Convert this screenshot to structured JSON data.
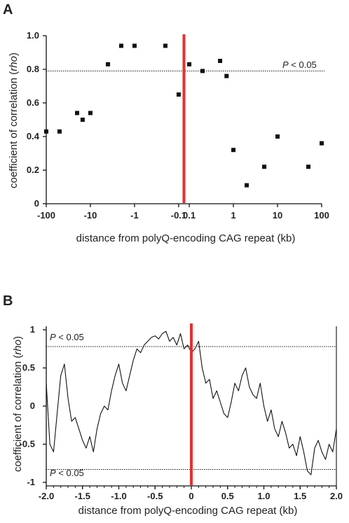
{
  "chart_data": [
    {
      "panel": "A",
      "type": "scatter",
      "xlabel": "distance from polyQ-encoding CAG repeat (kb)",
      "ylabel": "coefficient of correlation (rho)",
      "xscale": "symlog",
      "xticks": [
        -100,
        -10,
        -1,
        -0.1,
        0.1,
        1,
        10,
        100
      ],
      "xtick_labels": [
        "-100",
        "-10",
        "-1",
        "-0.1",
        "0.1",
        "1",
        "10",
        "100"
      ],
      "yticks": [
        0,
        0.2,
        0.4,
        0.6,
        0.8,
        1.0
      ],
      "ytick_labels": [
        "0",
        "0.2",
        "0.4",
        "0.6",
        "0.8",
        "1.0"
      ],
      "ylim": [
        0,
        1.0
      ],
      "threshold": {
        "y": 0.79,
        "label": "P < 0.05"
      },
      "center_marker": "red vertical line at 0",
      "points": [
        {
          "x": -100,
          "y": 0.43
        },
        {
          "x": -50,
          "y": 0.43
        },
        {
          "x": -20,
          "y": 0.54
        },
        {
          "x": -15,
          "y": 0.5
        },
        {
          "x": -10,
          "y": 0.54
        },
        {
          "x": -4,
          "y": 0.83
        },
        {
          "x": -2,
          "y": 0.94
        },
        {
          "x": -1,
          "y": 0.94
        },
        {
          "x": -0.2,
          "y": 0.94
        },
        {
          "x": -0.1,
          "y": 0.65
        },
        {
          "x": 0.1,
          "y": 0.83
        },
        {
          "x": 0.2,
          "y": 0.79
        },
        {
          "x": 0.5,
          "y": 0.85
        },
        {
          "x": 0.7,
          "y": 0.76
        },
        {
          "x": 1,
          "y": 0.32
        },
        {
          "x": 2,
          "y": 0.11
        },
        {
          "x": 5,
          "y": 0.22
        },
        {
          "x": 10,
          "y": 0.4
        },
        {
          "x": 50,
          "y": 0.22
        },
        {
          "x": 100,
          "y": 0.36
        }
      ]
    },
    {
      "panel": "B",
      "type": "line",
      "xlabel": "distance from polyQ-encoding CAG repeat (kb)",
      "ylabel": "coefficient of correlation (rho)",
      "xticks": [
        -2.0,
        -1.5,
        -1.0,
        -0.5,
        0,
        0.5,
        1.0,
        1.5,
        2.0
      ],
      "xtick_labels": [
        "-2.0",
        "-1.5",
        "-1.0",
        "-0.5",
        "0",
        "0.5",
        "1.0",
        "1.5",
        "2.0"
      ],
      "yticks": [
        -1,
        -0.5,
        0,
        0.5,
        1
      ],
      "ytick_labels": [
        "-1",
        "-0.5",
        "0",
        "0.5",
        "1"
      ],
      "xlim": [
        -2.0,
        2.0
      ],
      "ylim": [
        -1,
        1
      ],
      "thresholds": [
        {
          "y": 0.78,
          "label": "P < 0.05"
        },
        {
          "y": -0.83,
          "label": "P < 0.05"
        }
      ],
      "center_marker": "red vertical line at 0",
      "x": [
        -2.0,
        -1.95,
        -1.9,
        -1.85,
        -1.8,
        -1.75,
        -1.7,
        -1.65,
        -1.6,
        -1.55,
        -1.5,
        -1.45,
        -1.4,
        -1.35,
        -1.3,
        -1.25,
        -1.2,
        -1.15,
        -1.1,
        -1.05,
        -1.0,
        -0.95,
        -0.9,
        -0.85,
        -0.8,
        -0.75,
        -0.7,
        -0.65,
        -0.6,
        -0.55,
        -0.5,
        -0.45,
        -0.4,
        -0.35,
        -0.3,
        -0.25,
        -0.2,
        -0.15,
        -0.1,
        -0.05,
        0.0,
        0.05,
        0.1,
        0.15,
        0.2,
        0.25,
        0.3,
        0.35,
        0.4,
        0.45,
        0.5,
        0.55,
        0.6,
        0.65,
        0.7,
        0.75,
        0.8,
        0.85,
        0.9,
        0.95,
        1.0,
        1.05,
        1.1,
        1.15,
        1.2,
        1.25,
        1.3,
        1.35,
        1.4,
        1.45,
        1.5,
        1.55,
        1.6,
        1.65,
        1.7,
        1.75,
        1.8,
        1.85,
        1.9,
        1.95,
        2.0
      ],
      "y": [
        0.3,
        -0.5,
        -0.6,
        -0.1,
        0.4,
        0.55,
        0.1,
        -0.2,
        -0.15,
        -0.3,
        -0.45,
        -0.55,
        -0.4,
        -0.6,
        -0.3,
        -0.1,
        0.0,
        -0.05,
        0.2,
        0.4,
        0.55,
        0.3,
        0.2,
        0.4,
        0.6,
        0.75,
        0.7,
        0.8,
        0.85,
        0.9,
        0.92,
        0.88,
        0.95,
        0.98,
        0.85,
        0.9,
        0.8,
        0.95,
        0.75,
        0.8,
        0.7,
        0.75,
        0.85,
        0.5,
        0.3,
        0.35,
        0.1,
        0.2,
        0.05,
        -0.1,
        -0.15,
        0.05,
        0.3,
        0.2,
        0.4,
        0.5,
        0.25,
        0.15,
        0.1,
        0.3,
        0.0,
        -0.2,
        -0.05,
        -0.3,
        -0.4,
        -0.2,
        -0.35,
        -0.55,
        -0.5,
        -0.65,
        -0.4,
        -0.6,
        -0.85,
        -0.9,
        -0.55,
        -0.45,
        -0.6,
        -0.7,
        -0.5,
        -0.6,
        -0.3
      ]
    }
  ],
  "panels": {
    "A": {
      "letter": "A",
      "xlabel": "distance from polyQ-encoding CAG repeat (kb)",
      "ylabel_prefix": "coefficient of correlation (",
      "ylabel_italic": "rho",
      "ylabel_suffix": ")",
      "threshold_p": "P",
      "threshold_rest": " < 0.05"
    },
    "B": {
      "letter": "B",
      "xlabel": "distance from polyQ-encoding CAG repeat (kb)",
      "ylabel_prefix": "coefficient of correlation (",
      "ylabel_italic": "rho",
      "ylabel_suffix": ")",
      "threshold_p": "P",
      "threshold_rest": " < 0.05"
    }
  },
  "colors": {
    "axis": "#111111",
    "points": "#111111",
    "line": "#111111",
    "center": "#e53030",
    "threshold": "#111111"
  }
}
